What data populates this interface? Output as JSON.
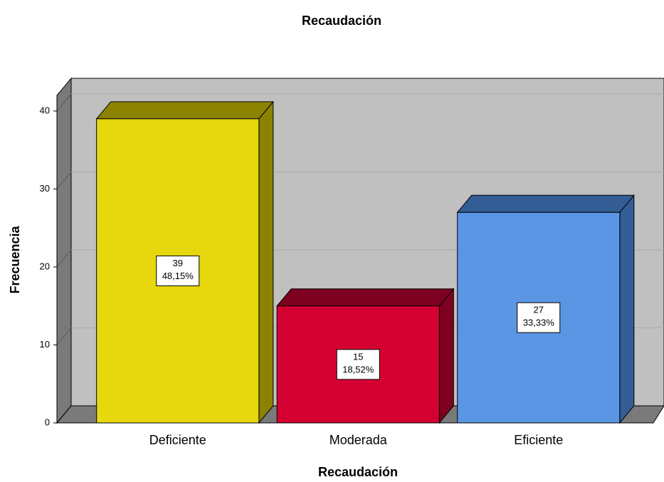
{
  "chart_data": {
    "type": "bar3d",
    "title": "Recaudación",
    "x_label": "Recaudación",
    "y_label": "Frecuencia",
    "categories": [
      "Deficiente",
      "Moderada",
      "Eficiente"
    ],
    "values": [
      39,
      15,
      27
    ],
    "colors": [
      "#e6d70e",
      "#d50032",
      "#5a96e3"
    ],
    "shade_colors": [
      "#8b8200",
      "#7d0020",
      "#345d95"
    ],
    "percent": {
      "values": [
        48.15,
        18.52,
        33.33
      ],
      "value_labels": [
        "48,15%",
        "18,52%",
        "33,33%"
      ]
    },
    "ylim": [
      0,
      42
    ],
    "yticks": [
      0,
      10,
      20,
      30,
      40
    ],
    "grid": true
  }
}
